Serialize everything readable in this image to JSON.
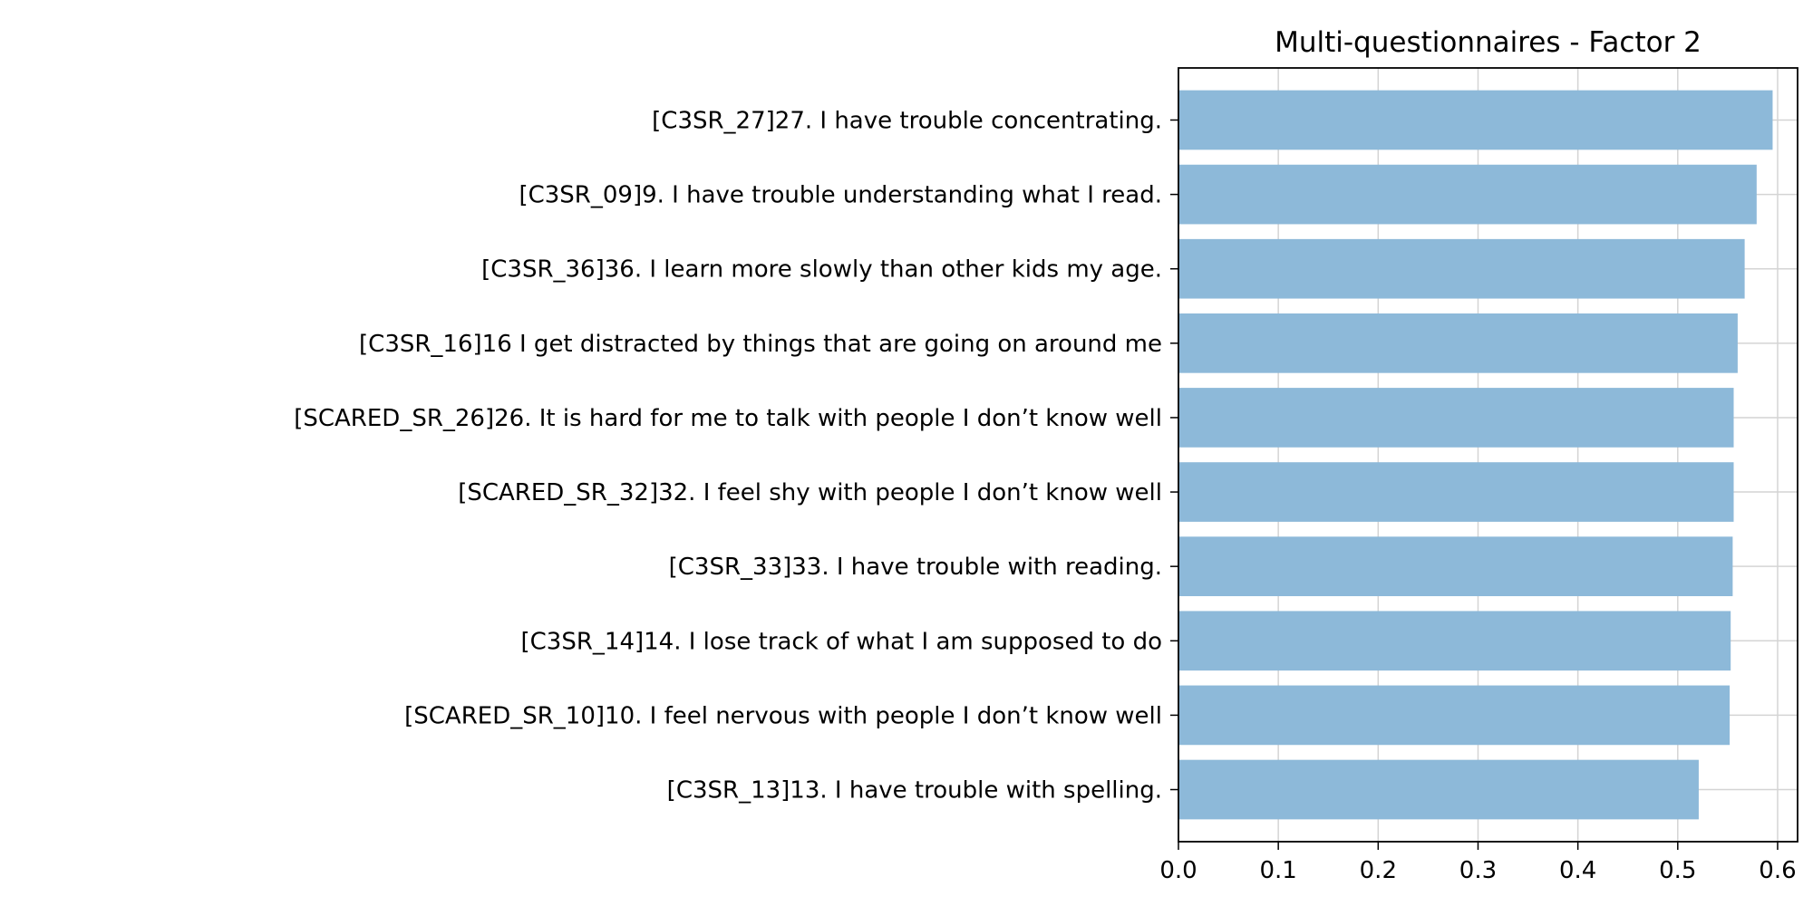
{
  "chart_data": {
    "type": "bar",
    "orientation": "horizontal",
    "title": "Multi-questionnaires - Factor 2",
    "xlabel": "",
    "ylabel": "",
    "xlim": [
      0.0,
      0.62
    ],
    "xticks": [
      "0.0",
      "0.1",
      "0.2",
      "0.3",
      "0.4",
      "0.5",
      "0.6"
    ],
    "grid": true,
    "bar_color": "#8db9d9",
    "categories": [
      "[C3SR_27]27. I have trouble concentrating.",
      "[C3SR_09]9. I have trouble understanding what I read.",
      "[C3SR_36]36. I learn more slowly than other kids my age.",
      "[C3SR_16]16 I get distracted by things that are going on around me",
      "[SCARED_SR_26]26. It is hard for me to talk with people I don’t know well",
      "[SCARED_SR_32]32. I feel shy with people I don’t know well",
      "[C3SR_33]33. I have trouble with reading.",
      "[C3SR_14]14. I lose track of what I am supposed to do",
      "[SCARED_SR_10]10. I feel nervous with people I don’t know well",
      "[C3SR_13]13. I have trouble with spelling."
    ],
    "values": [
      0.595,
      0.579,
      0.567,
      0.56,
      0.556,
      0.556,
      0.555,
      0.553,
      0.552,
      0.521
    ]
  }
}
